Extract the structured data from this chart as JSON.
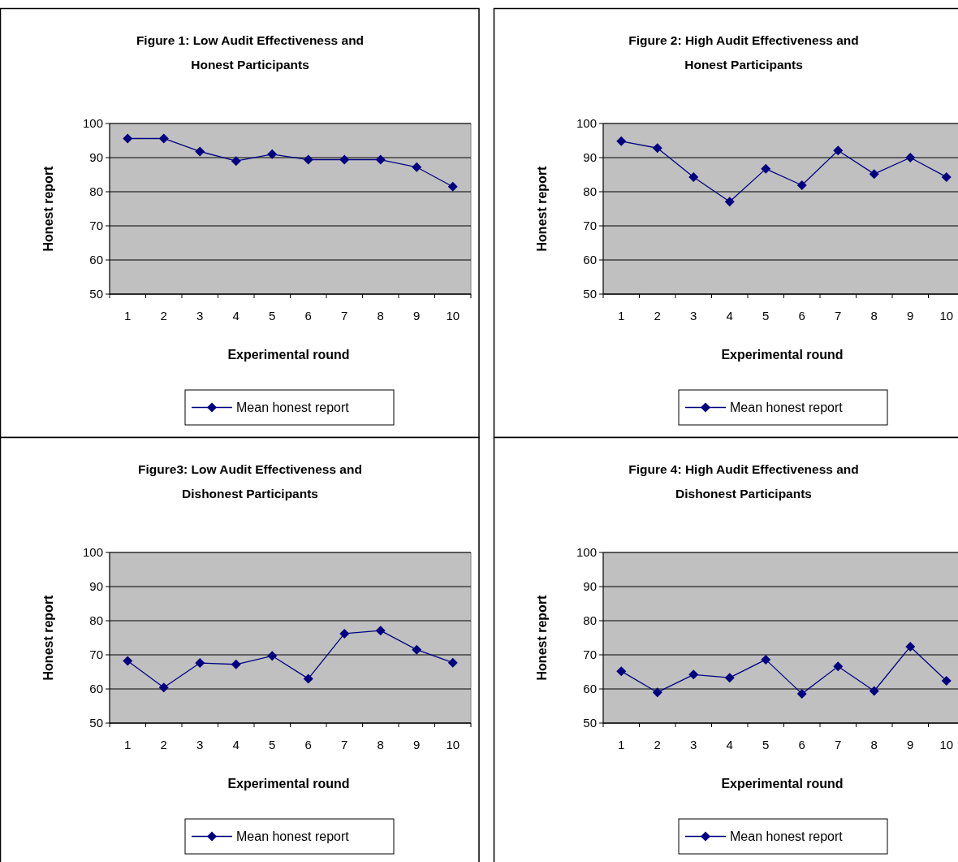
{
  "chart_data": [
    {
      "type": "line",
      "title": "Figure 1: Low Audit Effectiveness and Honest Participants",
      "xlabel": "Experimental round",
      "ylabel": "Honest report",
      "categories": [
        "1",
        "2",
        "3",
        "4",
        "5",
        "6",
        "7",
        "8",
        "9",
        "10"
      ],
      "series": [
        {
          "name": "Mean honest report",
          "color": "#000080",
          "values": [
            95.6,
            95.6,
            91.8,
            89.0,
            91.0,
            89.4,
            89.4,
            89.4,
            87.2,
            81.5
          ]
        }
      ],
      "ylim": [
        50,
        100
      ],
      "yticks": [
        50,
        60,
        70,
        80,
        90,
        100
      ],
      "grid": "y",
      "legend": "bottom",
      "marker": "diamond",
      "line_style": "solid"
    },
    {
      "type": "line",
      "title": "Figure 2: High Audit Effectiveness and Honest Participants",
      "xlabel": "Experimental round",
      "ylabel": "Honest report",
      "categories": [
        "1",
        "2",
        "3",
        "4",
        "5",
        "6",
        "7",
        "8",
        "9",
        "10"
      ],
      "series": [
        {
          "name": "Mean honest report",
          "color": "#000080",
          "values": [
            94.8,
            92.8,
            84.3,
            77.1,
            86.7,
            81.9,
            92.1,
            85.2,
            90.0,
            84.3
          ]
        }
      ],
      "ylim": [
        50,
        100
      ],
      "yticks": [
        50,
        60,
        70,
        80,
        90,
        100
      ],
      "grid": "y",
      "legend": "bottom",
      "marker": "diamond",
      "line_style": "solid"
    },
    {
      "type": "line",
      "title": "Figure3: Low Audit Effectiveness and Dishonest Participants",
      "xlabel": "Experimental round",
      "ylabel": "Honest report",
      "categories": [
        "1",
        "2",
        "3",
        "4",
        "5",
        "6",
        "7",
        "8",
        "9",
        "10"
      ],
      "series": [
        {
          "name": "Mean honest report",
          "color": "#000080",
          "values": [
            68.2,
            60.4,
            67.6,
            67.2,
            69.7,
            63.0,
            76.2,
            77.1,
            71.5,
            67.7
          ]
        }
      ],
      "ylim": [
        50,
        100
      ],
      "yticks": [
        50,
        60,
        70,
        80,
        90,
        100
      ],
      "grid": "y",
      "legend": "bottom",
      "marker": "diamond",
      "line_style": "solid"
    },
    {
      "type": "line",
      "title": "Figure 4: High Audit Effectiveness and Dishonest Participants",
      "xlabel": "Experimental round",
      "ylabel": "Honest report",
      "categories": [
        "1",
        "2",
        "3",
        "4",
        "5",
        "6",
        "7",
        "8",
        "9",
        "10"
      ],
      "series": [
        {
          "name": "Mean honest report",
          "color": "#000080",
          "values": [
            65.2,
            59.0,
            64.2,
            63.3,
            68.6,
            58.6,
            66.6,
            59.4,
            72.4,
            62.4
          ]
        }
      ],
      "ylim": [
        50,
        100
      ],
      "yticks": [
        50,
        60,
        70,
        80,
        90,
        100
      ],
      "grid": "y",
      "legend": "bottom",
      "marker": "diamond",
      "line_style": "solid"
    }
  ]
}
